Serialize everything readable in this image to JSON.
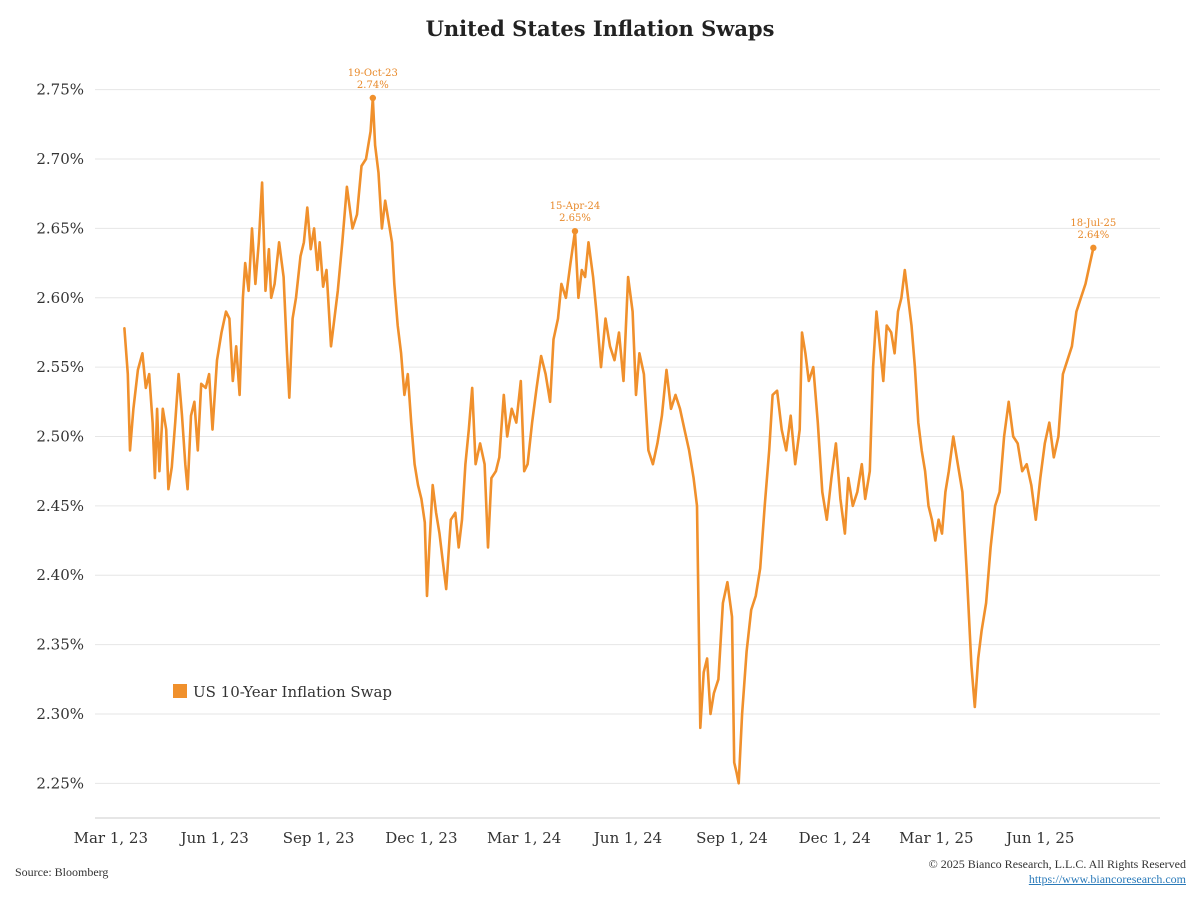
{
  "chart_data": {
    "type": "line",
    "title": "United States Inflation Swaps",
    "xlabel": "",
    "ylabel": "",
    "ylim": [
      2.225,
      2.775
    ],
    "yticks": [
      2.25,
      2.3,
      2.35,
      2.4,
      2.45,
      2.5,
      2.55,
      2.6,
      2.65,
      2.7,
      2.75
    ],
    "ytick_labels": [
      "2.25%",
      "2.30%",
      "2.35%",
      "2.40%",
      "2.45%",
      "2.50%",
      "2.55%",
      "2.60%",
      "2.65%",
      "2.70%",
      "2.75%"
    ],
    "xlim": [
      "2023-02-15",
      "2025-09-15"
    ],
    "xticks": [
      "2023-03-01",
      "2023-06-01",
      "2023-09-01",
      "2023-12-01",
      "2024-03-01",
      "2024-06-01",
      "2024-09-01",
      "2024-12-01",
      "2025-03-01",
      "2025-06-01"
    ],
    "xtick_labels": [
      "Mar 1, 23",
      "Jun 1, 23",
      "Sep 1, 23",
      "Dec 1, 23",
      "Mar 1, 24",
      "Jun 1, 24",
      "Sep 1, 24",
      "Dec 1, 24",
      "Mar 1, 25",
      "Jun 1, 25"
    ],
    "grid": true,
    "legend_position": "lower-left",
    "series": [
      {
        "name": "US 10-Year Inflation Swap",
        "color": "#f0902c",
        "points": [
          [
            "2023-03-13",
            2.578
          ],
          [
            "2023-03-16",
            2.545
          ],
          [
            "2023-03-18",
            2.49
          ],
          [
            "2023-03-21",
            2.52
          ],
          [
            "2023-03-25",
            2.548
          ],
          [
            "2023-03-29",
            2.56
          ],
          [
            "2023-04-01",
            2.535
          ],
          [
            "2023-04-04",
            2.545
          ],
          [
            "2023-04-07",
            2.51
          ],
          [
            "2023-04-09",
            2.47
          ],
          [
            "2023-04-11",
            2.52
          ],
          [
            "2023-04-13",
            2.475
          ],
          [
            "2023-04-16",
            2.52
          ],
          [
            "2023-04-19",
            2.505
          ],
          [
            "2023-04-21",
            2.462
          ],
          [
            "2023-04-24",
            2.478
          ],
          [
            "2023-04-27",
            2.51
          ],
          [
            "2023-04-30",
            2.545
          ],
          [
            "2023-05-03",
            2.515
          ],
          [
            "2023-05-06",
            2.48
          ],
          [
            "2023-05-08",
            2.462
          ],
          [
            "2023-05-11",
            2.515
          ],
          [
            "2023-05-14",
            2.525
          ],
          [
            "2023-05-17",
            2.49
          ],
          [
            "2023-05-20",
            2.538
          ],
          [
            "2023-05-24",
            2.535
          ],
          [
            "2023-05-27",
            2.545
          ],
          [
            "2023-05-30",
            2.505
          ],
          [
            "2023-06-03",
            2.555
          ],
          [
            "2023-06-07",
            2.575
          ],
          [
            "2023-06-11",
            2.59
          ],
          [
            "2023-06-14",
            2.585
          ],
          [
            "2023-06-17",
            2.54
          ],
          [
            "2023-06-20",
            2.565
          ],
          [
            "2023-06-23",
            2.53
          ],
          [
            "2023-06-26",
            2.6
          ],
          [
            "2023-06-28",
            2.625
          ],
          [
            "2023-07-01",
            2.605
          ],
          [
            "2023-07-04",
            2.65
          ],
          [
            "2023-07-07",
            2.61
          ],
          [
            "2023-07-10",
            2.64
          ],
          [
            "2023-07-13",
            2.683
          ],
          [
            "2023-07-16",
            2.605
          ],
          [
            "2023-07-19",
            2.635
          ],
          [
            "2023-07-21",
            2.6
          ],
          [
            "2023-07-24",
            2.61
          ],
          [
            "2023-07-28",
            2.64
          ],
          [
            "2023-08-01",
            2.615
          ],
          [
            "2023-08-04",
            2.56
          ],
          [
            "2023-08-06",
            2.528
          ],
          [
            "2023-08-09",
            2.585
          ],
          [
            "2023-08-12",
            2.6
          ],
          [
            "2023-08-16",
            2.63
          ],
          [
            "2023-08-19",
            2.64
          ],
          [
            "2023-08-22",
            2.665
          ],
          [
            "2023-08-25",
            2.635
          ],
          [
            "2023-08-28",
            2.65
          ],
          [
            "2023-08-31",
            2.62
          ],
          [
            "2023-09-02",
            2.64
          ],
          [
            "2023-09-05",
            2.608
          ],
          [
            "2023-09-08",
            2.62
          ],
          [
            "2023-09-12",
            2.565
          ],
          [
            "2023-09-15",
            2.585
          ],
          [
            "2023-09-18",
            2.605
          ],
          [
            "2023-09-22",
            2.64
          ],
          [
            "2023-09-26",
            2.68
          ],
          [
            "2023-10-01",
            2.65
          ],
          [
            "2023-10-05",
            2.66
          ],
          [
            "2023-10-09",
            2.695
          ],
          [
            "2023-10-13",
            2.7
          ],
          [
            "2023-10-17",
            2.72
          ],
          [
            "2023-10-19",
            2.744
          ],
          [
            "2023-10-21",
            2.71
          ],
          [
            "2023-10-24",
            2.69
          ],
          [
            "2023-10-27",
            2.65
          ],
          [
            "2023-10-30",
            2.67
          ],
          [
            "2023-11-02",
            2.655
          ],
          [
            "2023-11-05",
            2.64
          ],
          [
            "2023-11-07",
            2.61
          ],
          [
            "2023-11-10",
            2.58
          ],
          [
            "2023-11-13",
            2.56
          ],
          [
            "2023-11-16",
            2.53
          ],
          [
            "2023-11-19",
            2.545
          ],
          [
            "2023-11-22",
            2.51
          ],
          [
            "2023-11-25",
            2.48
          ],
          [
            "2023-11-28",
            2.465
          ],
          [
            "2023-12-01",
            2.455
          ],
          [
            "2023-12-04",
            2.438
          ],
          [
            "2023-12-06",
            2.385
          ],
          [
            "2023-12-08",
            2.42
          ],
          [
            "2023-12-11",
            2.465
          ],
          [
            "2023-12-14",
            2.445
          ],
          [
            "2023-12-17",
            2.43
          ],
          [
            "2023-12-20",
            2.41
          ],
          [
            "2023-12-23",
            2.39
          ],
          [
            "2023-12-27",
            2.44
          ],
          [
            "2023-12-31",
            2.445
          ],
          [
            "2024-01-03",
            2.42
          ],
          [
            "2024-01-06",
            2.44
          ],
          [
            "2024-01-09",
            2.48
          ],
          [
            "2024-01-12",
            2.505
          ],
          [
            "2024-01-15",
            2.535
          ],
          [
            "2024-01-18",
            2.48
          ],
          [
            "2024-01-22",
            2.495
          ],
          [
            "2024-01-26",
            2.48
          ],
          [
            "2024-01-29",
            2.42
          ],
          [
            "2024-02-01",
            2.47
          ],
          [
            "2024-02-05",
            2.475
          ],
          [
            "2024-02-08",
            2.485
          ],
          [
            "2024-02-12",
            2.53
          ],
          [
            "2024-02-15",
            2.5
          ],
          [
            "2024-02-19",
            2.52
          ],
          [
            "2024-02-23",
            2.51
          ],
          [
            "2024-02-27",
            2.54
          ],
          [
            "2024-03-01",
            2.475
          ],
          [
            "2024-03-04",
            2.48
          ],
          [
            "2024-03-08",
            2.51
          ],
          [
            "2024-03-12",
            2.535
          ],
          [
            "2024-03-16",
            2.558
          ],
          [
            "2024-03-20",
            2.545
          ],
          [
            "2024-03-24",
            2.525
          ],
          [
            "2024-03-27",
            2.57
          ],
          [
            "2024-03-31",
            2.585
          ],
          [
            "2024-04-03",
            2.61
          ],
          [
            "2024-04-07",
            2.6
          ],
          [
            "2024-04-11",
            2.625
          ],
          [
            "2024-04-15",
            2.648
          ],
          [
            "2024-04-18",
            2.6
          ],
          [
            "2024-04-21",
            2.62
          ],
          [
            "2024-04-24",
            2.615
          ],
          [
            "2024-04-27",
            2.64
          ],
          [
            "2024-05-01",
            2.615
          ],
          [
            "2024-05-04",
            2.59
          ],
          [
            "2024-05-08",
            2.55
          ],
          [
            "2024-05-12",
            2.585
          ],
          [
            "2024-05-16",
            2.565
          ],
          [
            "2024-05-20",
            2.555
          ],
          [
            "2024-05-24",
            2.575
          ],
          [
            "2024-05-28",
            2.54
          ],
          [
            "2024-06-01",
            2.615
          ],
          [
            "2024-06-05",
            2.59
          ],
          [
            "2024-06-08",
            2.53
          ],
          [
            "2024-06-11",
            2.56
          ],
          [
            "2024-06-15",
            2.545
          ],
          [
            "2024-06-19",
            2.49
          ],
          [
            "2024-06-23",
            2.48
          ],
          [
            "2024-06-27",
            2.495
          ],
          [
            "2024-07-01",
            2.515
          ],
          [
            "2024-07-05",
            2.548
          ],
          [
            "2024-07-09",
            2.52
          ],
          [
            "2024-07-13",
            2.53
          ],
          [
            "2024-07-17",
            2.52
          ],
          [
            "2024-07-21",
            2.505
          ],
          [
            "2024-07-25",
            2.49
          ],
          [
            "2024-07-29",
            2.47
          ],
          [
            "2024-08-01",
            2.45
          ],
          [
            "2024-08-04",
            2.29
          ],
          [
            "2024-08-07",
            2.33
          ],
          [
            "2024-08-10",
            2.34
          ],
          [
            "2024-08-13",
            2.3
          ],
          [
            "2024-08-16",
            2.315
          ],
          [
            "2024-08-20",
            2.325
          ],
          [
            "2024-08-24",
            2.38
          ],
          [
            "2024-08-28",
            2.395
          ],
          [
            "2024-09-01",
            2.37
          ],
          [
            "2024-09-03",
            2.265
          ],
          [
            "2024-09-05",
            2.258
          ],
          [
            "2024-09-07",
            2.25
          ],
          [
            "2024-09-10",
            2.3
          ],
          [
            "2024-09-14",
            2.345
          ],
          [
            "2024-09-18",
            2.375
          ],
          [
            "2024-09-22",
            2.385
          ],
          [
            "2024-09-26",
            2.405
          ],
          [
            "2024-09-30",
            2.45
          ],
          [
            "2024-10-04",
            2.49
          ],
          [
            "2024-10-07",
            2.53
          ],
          [
            "2024-10-11",
            2.533
          ],
          [
            "2024-10-15",
            2.505
          ],
          [
            "2024-10-19",
            2.49
          ],
          [
            "2024-10-23",
            2.515
          ],
          [
            "2024-10-27",
            2.48
          ],
          [
            "2024-10-31",
            2.505
          ],
          [
            "2024-11-02",
            2.575
          ],
          [
            "2024-11-05",
            2.56
          ],
          [
            "2024-11-08",
            2.54
          ],
          [
            "2024-11-12",
            2.55
          ],
          [
            "2024-11-16",
            2.51
          ],
          [
            "2024-11-20",
            2.46
          ],
          [
            "2024-11-24",
            2.44
          ],
          [
            "2024-11-28",
            2.47
          ],
          [
            "2024-12-02",
            2.495
          ],
          [
            "2024-12-06",
            2.455
          ],
          [
            "2024-12-10",
            2.43
          ],
          [
            "2024-12-13",
            2.47
          ],
          [
            "2024-12-17",
            2.45
          ],
          [
            "2024-12-21",
            2.46
          ],
          [
            "2024-12-25",
            2.48
          ],
          [
            "2024-12-28",
            2.455
          ],
          [
            "2025-01-01",
            2.475
          ],
          [
            "2025-01-04",
            2.55
          ],
          [
            "2025-01-07",
            2.59
          ],
          [
            "2025-01-10",
            2.565
          ],
          [
            "2025-01-13",
            2.54
          ],
          [
            "2025-01-16",
            2.58
          ],
          [
            "2025-01-20",
            2.575
          ],
          [
            "2025-01-23",
            2.56
          ],
          [
            "2025-01-26",
            2.59
          ],
          [
            "2025-01-29",
            2.6
          ],
          [
            "2025-02-01",
            2.62
          ],
          [
            "2025-02-04",
            2.6
          ],
          [
            "2025-02-07",
            2.58
          ],
          [
            "2025-02-10",
            2.55
          ],
          [
            "2025-02-13",
            2.51
          ],
          [
            "2025-02-16",
            2.49
          ],
          [
            "2025-02-19",
            2.475
          ],
          [
            "2025-02-22",
            2.45
          ],
          [
            "2025-02-25",
            2.44
          ],
          [
            "2025-02-28",
            2.425
          ],
          [
            "2025-03-03",
            2.44
          ],
          [
            "2025-03-06",
            2.43
          ],
          [
            "2025-03-09",
            2.46
          ],
          [
            "2025-03-12",
            2.475
          ],
          [
            "2025-03-16",
            2.5
          ],
          [
            "2025-03-20",
            2.48
          ],
          [
            "2025-03-24",
            2.46
          ],
          [
            "2025-03-28",
            2.4
          ],
          [
            "2025-04-01",
            2.335
          ],
          [
            "2025-04-04",
            2.305
          ],
          [
            "2025-04-07",
            2.34
          ],
          [
            "2025-04-10",
            2.36
          ],
          [
            "2025-04-14",
            2.38
          ],
          [
            "2025-04-18",
            2.42
          ],
          [
            "2025-04-22",
            2.45
          ],
          [
            "2025-04-26",
            2.46
          ],
          [
            "2025-04-30",
            2.5
          ],
          [
            "2025-05-04",
            2.525
          ],
          [
            "2025-05-08",
            2.5
          ],
          [
            "2025-05-12",
            2.495
          ],
          [
            "2025-05-16",
            2.475
          ],
          [
            "2025-05-20",
            2.48
          ],
          [
            "2025-05-24",
            2.465
          ],
          [
            "2025-05-28",
            2.44
          ],
          [
            "2025-06-01",
            2.47
          ],
          [
            "2025-06-05",
            2.495
          ],
          [
            "2025-06-09",
            2.51
          ],
          [
            "2025-06-13",
            2.485
          ],
          [
            "2025-06-17",
            2.5
          ],
          [
            "2025-06-21",
            2.545
          ],
          [
            "2025-06-25",
            2.555
          ],
          [
            "2025-06-29",
            2.565
          ],
          [
            "2025-07-03",
            2.59
          ],
          [
            "2025-07-07",
            2.6
          ],
          [
            "2025-07-11",
            2.61
          ],
          [
            "2025-07-15",
            2.625
          ],
          [
            "2025-07-18",
            2.636
          ]
        ]
      }
    ],
    "annotations": [
      {
        "date": "2023-10-19",
        "value": 2.744,
        "label": "19-Oct-23",
        "value_label": "2.74%"
      },
      {
        "date": "2024-04-15",
        "value": 2.648,
        "label": "15-Apr-24",
        "value_label": "2.65%"
      },
      {
        "date": "2025-07-18",
        "value": 2.636,
        "label": "18-Jul-25",
        "value_label": "2.64%"
      }
    ]
  },
  "footer": {
    "source": "Source: Bloomberg",
    "copyright": "© 2025 Bianco Research, L.L.C. All Rights Reserved",
    "url": "https://www.biancoresearch.com"
  }
}
